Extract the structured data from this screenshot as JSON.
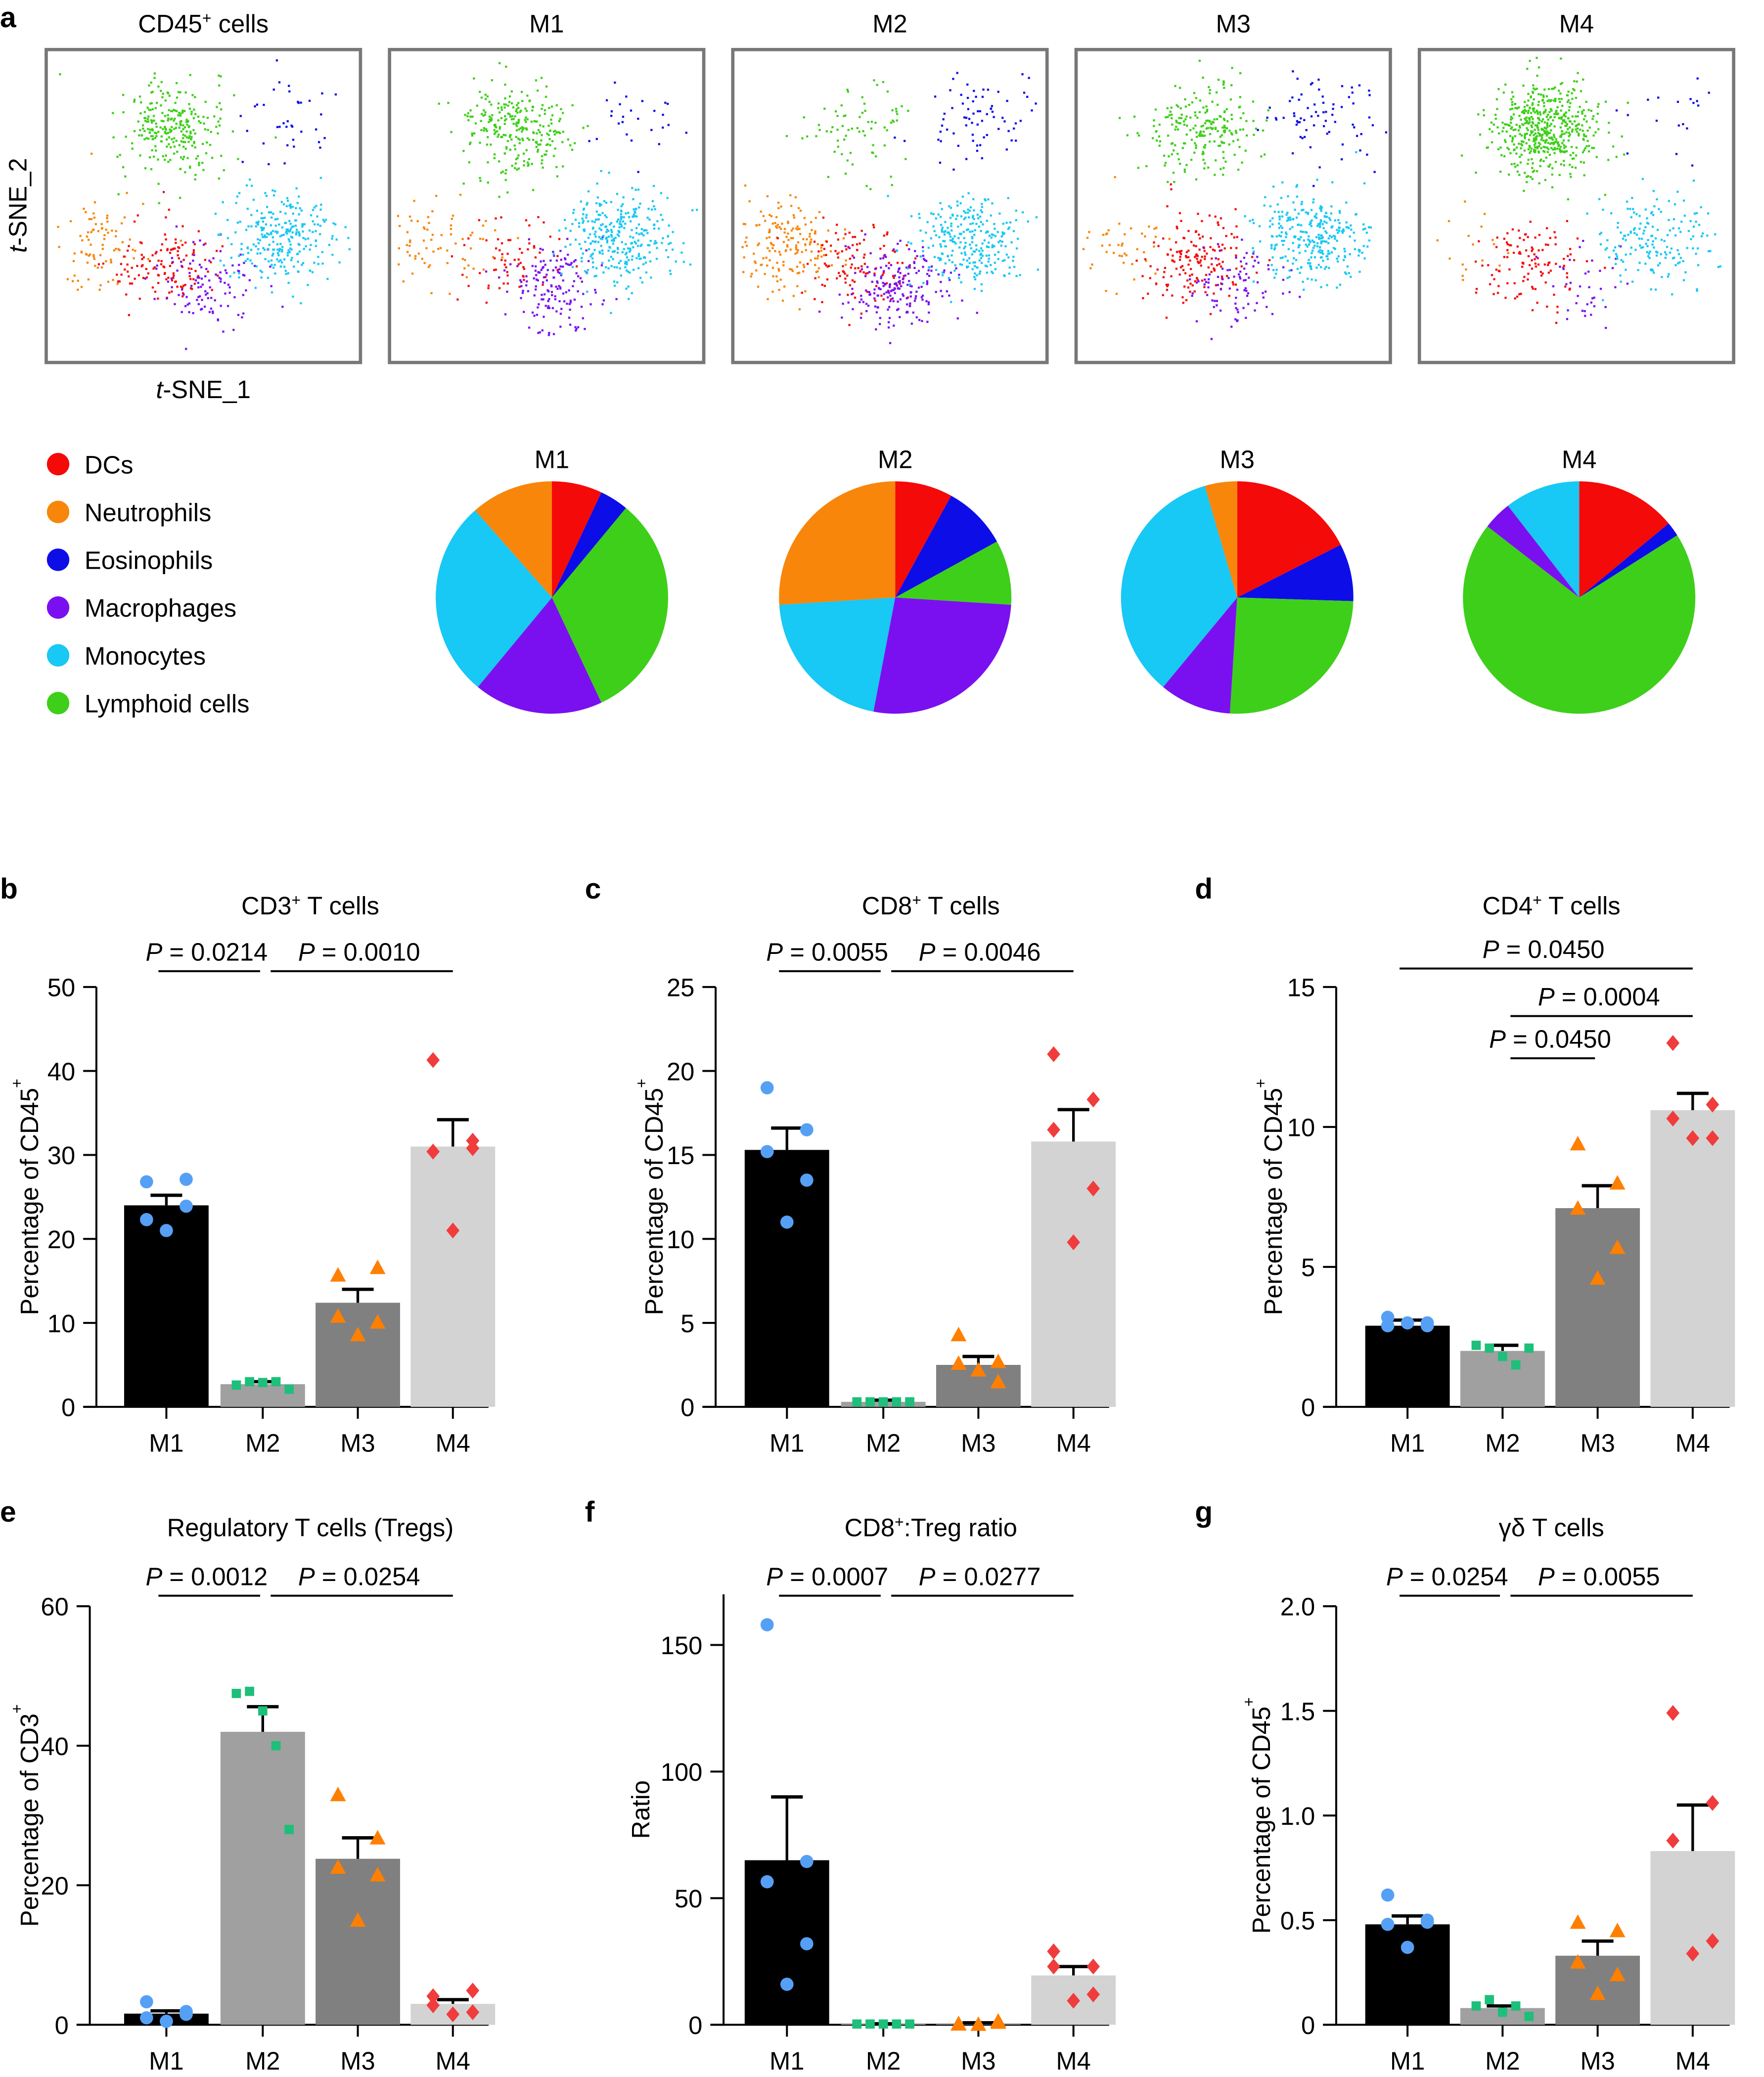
{
  "colors": {
    "DCs": "#f50a0a",
    "Neutrophils": "#f8860b",
    "Eosinophils": "#0d0de8",
    "Macrophages": "#7a10f0",
    "Monocytes": "#18c8f5",
    "Lymphoid cells": "#3ecf1a"
  },
  "panel_a": {
    "letter": "a",
    "tsne_titles": [
      "CD45",
      "M1",
      "M2",
      "M3",
      "M4"
    ],
    "tsne_title_sup": "+",
    "tsne_title_suffix": " cells",
    "xlabel_italic": "t",
    "xlabel": "-SNE_1",
    "ylabel_italic": "t",
    "ylabel": "-SNE_2",
    "legend": [
      "DCs",
      "Neutrophils",
      "Eosinophils",
      "Macrophages",
      "Monocytes",
      "Lymphoid cells"
    ]
  },
  "chart_data": [
    {
      "type": "scatter",
      "name": "tsne",
      "note": "t-SNE embeddings; relative cluster abundance per panel",
      "panels": [
        "CD45+ cells",
        "M1",
        "M2",
        "M3",
        "M4"
      ],
      "clusters": [
        {
          "type": "Lymphoid cells",
          "center": [
            40,
            25
          ],
          "abundance": [
            0.3,
            0.3,
            0.08,
            0.25,
            0.6
          ]
        },
        {
          "type": "Eosinophils",
          "center": [
            78,
            22
          ],
          "abundance": [
            0.04,
            0.03,
            0.08,
            0.08,
            0.02
          ]
        },
        {
          "type": "Neutrophils",
          "center": [
            16,
            62
          ],
          "abundance": [
            0.1,
            0.08,
            0.2,
            0.05,
            0.02
          ]
        },
        {
          "type": "DCs",
          "center": [
            37,
            68
          ],
          "abundance": [
            0.14,
            0.07,
            0.12,
            0.18,
            0.13
          ]
        },
        {
          "type": "Macrophages",
          "center": [
            52,
            75
          ],
          "abundance": [
            0.12,
            0.17,
            0.22,
            0.1,
            0.04
          ]
        },
        {
          "type": "Monocytes",
          "center": [
            74,
            60
          ],
          "abundance": [
            0.3,
            0.35,
            0.3,
            0.34,
            0.19
          ]
        }
      ]
    },
    {
      "type": "pie",
      "titles": [
        "M1",
        "M2",
        "M3",
        "M4"
      ],
      "labels": [
        "DCs",
        "Eosinophils",
        "Lymphoid cells",
        "Macrophages",
        "Monocytes",
        "Neutrophils"
      ],
      "values": [
        [
          7,
          4,
          32,
          18,
          27.5,
          11.5
        ],
        [
          8,
          9,
          9,
          27,
          21,
          26
        ],
        [
          17.5,
          8,
          25.5,
          10,
          34.5,
          4.5
        ],
        [
          14,
          2,
          69.5,
          4,
          10.5,
          0
        ]
      ]
    },
    {
      "type": "bar",
      "letter": "b",
      "title": "CD3",
      "title_sup": "+",
      "title_suffix": " T cells",
      "ylabel": "Percentage of CD45",
      "ylabel_sup": "+",
      "ylim": [
        0,
        50
      ],
      "yticks": [
        "0",
        "10",
        "20",
        "30",
        "40",
        "50"
      ],
      "categories": [
        "M1",
        "M2",
        "M3",
        "M4"
      ],
      "means": [
        24,
        2.7,
        12.4,
        31
      ],
      "sem_top": [
        25.2,
        3.0,
        14,
        34.2
      ],
      "points": [
        [
          26.8,
          27.1,
          22.3,
          23.9,
          21.0
        ],
        [
          2.6,
          3.0,
          2.9,
          3.0,
          2.1
        ],
        [
          15.7,
          16.6,
          10.8,
          10.1,
          8.6
        ],
        [
          41.3,
          31.7,
          30.4,
          30.8,
          21.0
        ]
      ],
      "pvalues": [
        {
          "from": 0,
          "to": 1,
          "label": "= 0.0214"
        },
        {
          "from": 1,
          "to": 3,
          "label": "= 0.0010"
        }
      ]
    },
    {
      "type": "bar",
      "letter": "c",
      "title": "CD8",
      "title_sup": "+",
      "title_suffix": " T cells",
      "ylabel": "Percentage of CD45",
      "ylabel_sup": "+",
      "ylim": [
        0,
        25
      ],
      "yticks": [
        "0",
        "5",
        "10",
        "15",
        "20",
        "25"
      ],
      "categories": [
        "M1",
        "M2",
        "M3",
        "M4"
      ],
      "means": [
        15.3,
        0.3,
        2.5,
        15.8
      ],
      "sem_top": [
        16.6,
        0.4,
        3.0,
        17.7
      ],
      "points": [
        [
          19,
          16.5,
          15.2,
          13.5,
          11
        ],
        [
          0.3,
          0.3,
          0.3,
          0.3,
          0.3
        ],
        [
          4.3,
          2.7,
          2.6,
          1.5,
          2.2
        ],
        [
          21,
          18.3,
          16.5,
          13,
          9.8
        ]
      ],
      "pvalues": [
        {
          "from": 0,
          "to": 1,
          "label": "= 0.0055"
        },
        {
          "from": 1,
          "to": 3,
          "label": "= 0.0046"
        }
      ]
    },
    {
      "type": "bar",
      "letter": "d",
      "title": "CD4",
      "title_sup": "+",
      "title_suffix": " T cells",
      "ylabel": "Percentage of CD45",
      "ylabel_sup": "+",
      "ylim": [
        0,
        15
      ],
      "yticks": [
        "0",
        "5",
        "10",
        "15"
      ],
      "categories": [
        "M1",
        "M2",
        "M3",
        "M4"
      ],
      "means": [
        2.9,
        2.0,
        7.1,
        10.6
      ],
      "sem_top": [
        3.1,
        2.2,
        7.9,
        11.2
      ],
      "points": [
        [
          3.2,
          3.0,
          2.9,
          2.9,
          3.0
        ],
        [
          2.2,
          2.1,
          1.8,
          1.5,
          2.1
        ],
        [
          9.4,
          8.0,
          7.1,
          5.7,
          4.6
        ],
        [
          13,
          10.8,
          10.3,
          9.6,
          9.6
        ]
      ],
      "pvalues": [
        {
          "from": 0,
          "to": 3,
          "label": "= 0.0450"
        },
        {
          "from": 1,
          "to": 3,
          "label": "= 0.0004"
        },
        {
          "from": 1,
          "to": 2,
          "label": "= 0.0450"
        }
      ]
    },
    {
      "type": "bar",
      "letter": "e",
      "title": "Regulatory T cells (Tregs)",
      "title_sup": "",
      "title_suffix": "",
      "ylabel": "Percentage of CD3",
      "ylabel_sup": "+",
      "ylim": [
        0,
        60
      ],
      "yticks": [
        "0",
        "20",
        "40",
        "60"
      ],
      "categories": [
        "M1",
        "M2",
        "M3",
        "M4"
      ],
      "means": [
        1.6,
        42,
        23.8,
        3.0
      ],
      "sem_top": [
        2.0,
        45.6,
        26.8,
        3.6
      ],
      "points": [
        [
          3.3,
          1.9,
          1.0,
          1.5,
          0.5
        ],
        [
          47.5,
          47.8,
          45.0,
          40.0,
          28.0
        ],
        [
          33,
          26.8,
          22.6,
          21.5,
          15
        ],
        [
          4.1,
          4.9,
          2.8,
          1.8,
          1.5
        ]
      ],
      "pvalues": [
        {
          "from": 0,
          "to": 1,
          "label": "= 0.0012"
        },
        {
          "from": 1,
          "to": 3,
          "label": "= 0.0254"
        }
      ]
    },
    {
      "type": "bar",
      "letter": "f",
      "title": "CD8",
      "title_sup": "+",
      "title_suffix": ":Treg ratio",
      "ylabel": "Ratio",
      "ylabel_sup": "",
      "ylim": [
        0,
        170
      ],
      "yticks": [
        "0",
        "50",
        "100",
        "150"
      ],
      "categories": [
        "M1",
        "M2",
        "M3",
        "M4"
      ],
      "means": [
        65,
        0.3,
        0.5,
        19.5
      ],
      "sem_top": [
        90,
        0.4,
        0.8,
        23
      ],
      "points": [
        [
          158,
          64.5,
          56.5,
          32,
          16
        ],
        [
          0.3,
          0.3,
          0.3,
          0.3,
          0.3
        ],
        [
          0.5,
          1.5,
          0.3,
          1.0,
          0.2
        ],
        [
          29,
          23,
          23,
          12,
          9.5
        ]
      ],
      "pvalues": [
        {
          "from": 0,
          "to": 1,
          "label": "= 0.0007"
        },
        {
          "from": 1,
          "to": 3,
          "label": "= 0.0277"
        }
      ]
    },
    {
      "type": "bar",
      "letter": "g",
      "title": "γδ T cells",
      "title_sup": "",
      "title_suffix": "",
      "ylabel": "Percentage of CD45",
      "ylabel_sup": "+",
      "ylim": [
        0,
        2
      ],
      "yticks": [
        "0",
        "0.5",
        "1.0",
        "1.5",
        "2.0"
      ],
      "categories": [
        "M1",
        "M2",
        "M3",
        "M4"
      ],
      "means": [
        0.48,
        0.08,
        0.33,
        0.83
      ],
      "sem_top": [
        0.52,
        0.09,
        0.4,
        1.05
      ],
      "points": [
        [
          0.62,
          0.5,
          0.48,
          0.49,
          0.37
        ],
        [
          0.09,
          0.12,
          0.06,
          0.09,
          0.04
        ],
        [
          0.49,
          0.45,
          0.3,
          0.24,
          0.15
        ],
        [
          1.49,
          1.06,
          0.88,
          0.4,
          0.34
        ]
      ],
      "pvalues": [
        {
          "from": 0,
          "to": 1,
          "label": "= 0.0254"
        },
        {
          "from": 1,
          "to": 3,
          "label": "= 0.0055"
        }
      ]
    }
  ],
  "bar_style": {
    "bar_colors": [
      "#000000",
      "#a0a0a0",
      "#808080",
      "#d3d3d3"
    ],
    "point_colors": [
      "#55a0f5",
      "#1dbf7a",
      "#ff7f00",
      "#f03c3c"
    ],
    "point_shapes": [
      "circle",
      "square",
      "triangle",
      "diamond"
    ],
    "p_symbol": "P"
  }
}
